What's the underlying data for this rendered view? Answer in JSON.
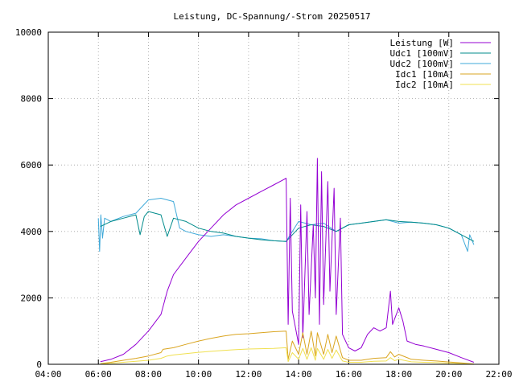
{
  "chart_data": {
    "type": "line",
    "title": "Leistung, DC-Spannung/-Strom 20250517",
    "xlabel": "",
    "ylabel": "",
    "xlim": [
      "04:00",
      "22:00"
    ],
    "ylim": [
      0,
      10000
    ],
    "x_ticks": [
      "04:00",
      "06:00",
      "08:00",
      "10:00",
      "12:00",
      "14:00",
      "16:00",
      "18:00",
      "20:00",
      "22:00"
    ],
    "y_ticks": [
      "0",
      "2000",
      "4000",
      "6000",
      "8000",
      "10000"
    ],
    "grid": true,
    "legend_position": "top-right",
    "series": [
      {
        "name": "Leistung [W]",
        "color": "#9400d3",
        "points": [
          [
            "06:05",
            80
          ],
          [
            "06:30",
            150
          ],
          [
            "07:00",
            300
          ],
          [
            "07:30",
            600
          ],
          [
            "08:00",
            1000
          ],
          [
            "08:30",
            1500
          ],
          [
            "08:45",
            2200
          ],
          [
            "09:00",
            2700
          ],
          [
            "09:30",
            3200
          ],
          [
            "10:00",
            3700
          ],
          [
            "10:30",
            4100
          ],
          [
            "11:00",
            4500
          ],
          [
            "11:30",
            4800
          ],
          [
            "12:00",
            5000
          ],
          [
            "12:30",
            5200
          ],
          [
            "13:00",
            5400
          ],
          [
            "13:30",
            5600
          ],
          [
            "13:35",
            1200
          ],
          [
            "13:40",
            5000
          ],
          [
            "13:45",
            1600
          ],
          [
            "14:00",
            600
          ],
          [
            "14:05",
            4800
          ],
          [
            "14:10",
            800
          ],
          [
            "14:20",
            4600
          ],
          [
            "14:25",
            1500
          ],
          [
            "14:35",
            4200
          ],
          [
            "14:40",
            2000
          ],
          [
            "14:45",
            6200
          ],
          [
            "14:50",
            1200
          ],
          [
            "14:55",
            5800
          ],
          [
            "15:00",
            1800
          ],
          [
            "15:10",
            5500
          ],
          [
            "15:15",
            2200
          ],
          [
            "15:25",
            5300
          ],
          [
            "15:30",
            1500
          ],
          [
            "15:40",
            4400
          ],
          [
            "15:45",
            900
          ],
          [
            "16:00",
            500
          ],
          [
            "16:15",
            400
          ],
          [
            "16:30",
            500
          ],
          [
            "16:45",
            900
          ],
          [
            "17:00",
            1100
          ],
          [
            "17:15",
            1000
          ],
          [
            "17:30",
            1100
          ],
          [
            "17:40",
            2200
          ],
          [
            "17:45",
            1200
          ],
          [
            "18:00",
            1700
          ],
          [
            "18:10",
            1300
          ],
          [
            "18:20",
            700
          ],
          [
            "18:40",
            600
          ],
          [
            "19:00",
            550
          ],
          [
            "19:30",
            450
          ],
          [
            "20:00",
            350
          ],
          [
            "20:30",
            200
          ],
          [
            "21:00",
            60
          ]
        ]
      },
      {
        "name": "Udc1 [100mV]",
        "color": "#008b8b",
        "points": [
          [
            "06:05",
            4150
          ],
          [
            "06:30",
            4300
          ],
          [
            "07:00",
            4400
          ],
          [
            "07:30",
            4500
          ],
          [
            "07:40",
            3900
          ],
          [
            "07:50",
            4450
          ],
          [
            "08:00",
            4600
          ],
          [
            "08:30",
            4500
          ],
          [
            "08:45",
            3850
          ],
          [
            "09:00",
            4400
          ],
          [
            "09:30",
            4300
          ],
          [
            "10:00",
            4100
          ],
          [
            "10:30",
            4000
          ],
          [
            "11:00",
            3950
          ],
          [
            "11:30",
            3850
          ],
          [
            "12:00",
            3800
          ],
          [
            "12:30",
            3750
          ],
          [
            "13:00",
            3720
          ],
          [
            "13:30",
            3700
          ],
          [
            "14:00",
            4100
          ],
          [
            "14:30",
            4200
          ],
          [
            "15:00",
            4150
          ],
          [
            "15:30",
            4000
          ],
          [
            "16:00",
            4200
          ],
          [
            "16:30",
            4250
          ],
          [
            "17:00",
            4300
          ],
          [
            "17:30",
            4350
          ],
          [
            "18:00",
            4300
          ],
          [
            "18:30",
            4280
          ],
          [
            "19:00",
            4250
          ],
          [
            "19:30",
            4200
          ],
          [
            "20:00",
            4100
          ],
          [
            "20:30",
            3900
          ],
          [
            "21:00",
            3700
          ]
        ]
      },
      {
        "name": "Udc2 [100mV]",
        "color": "#3fa9d9",
        "points": [
          [
            "06:00",
            4400
          ],
          [
            "06:03",
            3400
          ],
          [
            "06:06",
            4500
          ],
          [
            "06:10",
            3800
          ],
          [
            "06:15",
            4400
          ],
          [
            "06:30",
            4300
          ],
          [
            "07:00",
            4450
          ],
          [
            "07:30",
            4550
          ],
          [
            "08:00",
            4950
          ],
          [
            "08:30",
            5000
          ],
          [
            "09:00",
            4900
          ],
          [
            "09:15",
            4100
          ],
          [
            "09:30",
            4000
          ],
          [
            "10:00",
            3900
          ],
          [
            "10:30",
            3850
          ],
          [
            "11:00",
            3900
          ],
          [
            "11:30",
            3850
          ],
          [
            "12:00",
            3800
          ],
          [
            "12:30",
            3780
          ],
          [
            "13:00",
            3720
          ],
          [
            "13:30",
            3700
          ],
          [
            "14:00",
            4300
          ],
          [
            "14:30",
            4200
          ],
          [
            "15:00",
            4250
          ],
          [
            "15:30",
            4000
          ],
          [
            "16:00",
            4200
          ],
          [
            "16:30",
            4250
          ],
          [
            "17:00",
            4300
          ],
          [
            "17:30",
            4350
          ],
          [
            "18:00",
            4250
          ],
          [
            "18:30",
            4280
          ],
          [
            "19:00",
            4250
          ],
          [
            "19:30",
            4200
          ],
          [
            "20:00",
            4100
          ],
          [
            "20:30",
            3900
          ],
          [
            "20:45",
            3400
          ],
          [
            "20:50",
            3900
          ],
          [
            "21:00",
            3600
          ]
        ]
      },
      {
        "name": "Idc1 [10mA]",
        "color": "#daa520",
        "points": [
          [
            "06:05",
            20
          ],
          [
            "06:30",
            60
          ],
          [
            "07:00",
            120
          ],
          [
            "07:30",
            180
          ],
          [
            "08:00",
            250
          ],
          [
            "08:30",
            350
          ],
          [
            "08:35",
            450
          ],
          [
            "09:00",
            500
          ],
          [
            "09:30",
            600
          ],
          [
            "10:00",
            700
          ],
          [
            "10:30",
            780
          ],
          [
            "11:00",
            850
          ],
          [
            "11:30",
            900
          ],
          [
            "12:00",
            920
          ],
          [
            "12:30",
            950
          ],
          [
            "13:00",
            980
          ],
          [
            "13:30",
            1000
          ],
          [
            "13:35",
            150
          ],
          [
            "13:45",
            700
          ],
          [
            "14:00",
            300
          ],
          [
            "14:10",
            950
          ],
          [
            "14:20",
            300
          ],
          [
            "14:30",
            1000
          ],
          [
            "14:40",
            250
          ],
          [
            "14:45",
            950
          ],
          [
            "15:00",
            300
          ],
          [
            "15:10",
            900
          ],
          [
            "15:20",
            350
          ],
          [
            "15:30",
            850
          ],
          [
            "15:45",
            200
          ],
          [
            "16:00",
            120
          ],
          [
            "16:30",
            120
          ],
          [
            "17:00",
            180
          ],
          [
            "17:30",
            200
          ],
          [
            "17:40",
            380
          ],
          [
            "17:50",
            220
          ],
          [
            "18:00",
            300
          ],
          [
            "18:30",
            150
          ],
          [
            "19:00",
            120
          ],
          [
            "19:30",
            100
          ],
          [
            "20:00",
            70
          ],
          [
            "20:30",
            40
          ],
          [
            "21:00",
            10
          ]
        ]
      },
      {
        "name": "Idc2 [10mA]",
        "color": "#f0e050",
        "points": [
          [
            "06:05",
            10
          ],
          [
            "06:30",
            30
          ],
          [
            "07:00",
            60
          ],
          [
            "07:30",
            90
          ],
          [
            "08:00",
            120
          ],
          [
            "08:30",
            180
          ],
          [
            "08:45",
            250
          ],
          [
            "09:00",
            280
          ],
          [
            "09:30",
            320
          ],
          [
            "10:00",
            360
          ],
          [
            "10:30",
            390
          ],
          [
            "11:00",
            420
          ],
          [
            "11:30",
            440
          ],
          [
            "12:00",
            460
          ],
          [
            "12:30",
            470
          ],
          [
            "13:00",
            480
          ],
          [
            "13:30",
            500
          ],
          [
            "13:35",
            80
          ],
          [
            "13:45",
            350
          ],
          [
            "14:00",
            150
          ],
          [
            "14:10",
            480
          ],
          [
            "14:20",
            150
          ],
          [
            "14:30",
            500
          ],
          [
            "14:40",
            120
          ],
          [
            "14:45",
            480
          ],
          [
            "15:00",
            150
          ],
          [
            "15:10",
            450
          ],
          [
            "15:20",
            180
          ],
          [
            "15:30",
            430
          ],
          [
            "15:45",
            100
          ],
          [
            "16:00",
            60
          ],
          [
            "16:30",
            60
          ],
          [
            "17:00",
            90
          ],
          [
            "17:30",
            100
          ],
          [
            "17:40",
            200
          ],
          [
            "17:50",
            110
          ],
          [
            "18:00",
            150
          ],
          [
            "18:30",
            75
          ],
          [
            "19:00",
            60
          ],
          [
            "19:30",
            50
          ],
          [
            "20:00",
            35
          ],
          [
            "20:30",
            20
          ],
          [
            "21:00",
            5
          ]
        ]
      }
    ]
  }
}
